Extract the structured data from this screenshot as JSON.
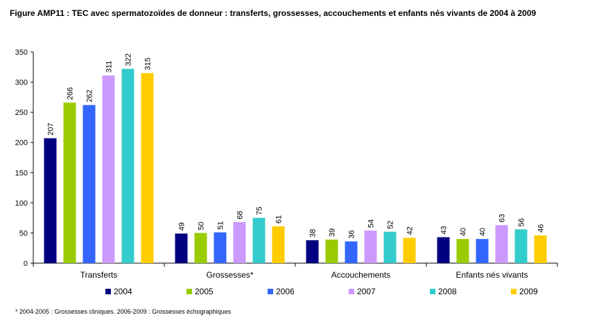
{
  "chart_data": {
    "type": "bar",
    "title": "Figure AMP11 : TEC avec spermatozoïdes de donneur : transferts, grossesses, accouchements et enfants nés vivants de 2004 à 2009",
    "xlabel": "",
    "ylabel": "",
    "ylim": [
      0,
      350
    ],
    "yticks": [
      0,
      50,
      100,
      150,
      200,
      250,
      300,
      350
    ],
    "categories": [
      "Transferts",
      "Grossesses*",
      "Accouchements",
      "Enfants nés vivants"
    ],
    "series": [
      {
        "name": "2004",
        "color": "#000080",
        "values": [
          207,
          49,
          38,
          43
        ]
      },
      {
        "name": "2005",
        "color": "#99cc00",
        "values": [
          266,
          50,
          39,
          40
        ]
      },
      {
        "name": "2006",
        "color": "#3366ff",
        "values": [
          262,
          51,
          36,
          40
        ]
      },
      {
        "name": "2007",
        "color": "#cc99ff",
        "values": [
          311,
          68,
          54,
          63
        ]
      },
      {
        "name": "2008",
        "color": "#33cccc",
        "values": [
          322,
          75,
          52,
          56
        ]
      },
      {
        "name": "2009",
        "color": "#ffcc00",
        "values": [
          315,
          61,
          42,
          46
        ]
      }
    ],
    "data_labels": true,
    "grid": false,
    "legend_position": "bottom"
  },
  "footnote": "* 2004-2005 : Grossesses cliniques. 2006-2009 : Grossesses échographiques"
}
